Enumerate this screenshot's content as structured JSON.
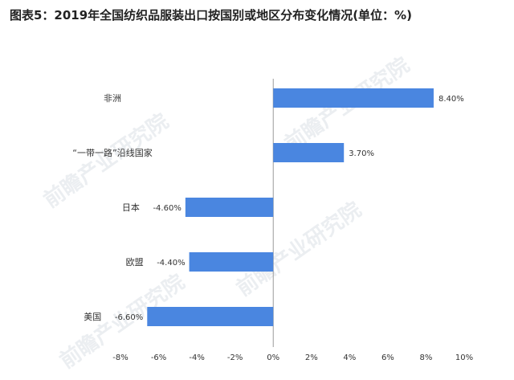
{
  "title": "图表5：2019年全国纺织品服装出口按国别或地区分布变化情况(单位：%)",
  "watermark": "前瞻产业研究院",
  "colors": {
    "bar": "#4a86e0",
    "axis": "#9a9a9a",
    "text": "#333333"
  },
  "chart_data": {
    "type": "bar",
    "orientation": "horizontal",
    "title": "图表5：2019年全国纺织品服装出口按国别或地区分布变化情况(单位：%)",
    "categories": [
      "非洲",
      "“一带一路”沿线国家",
      "日本",
      "欧盟",
      "美国"
    ],
    "values": [
      8.4,
      3.7,
      -4.6,
      -4.4,
      -6.6
    ],
    "data_labels": [
      "8.40%",
      "3.70%",
      "-4.60%",
      "-4.40%",
      "-6.60%"
    ],
    "x_ticks": [
      "-8%",
      "-6%",
      "-4%",
      "-2%",
      "0%",
      "2%",
      "4%",
      "6%",
      "8%",
      "10%"
    ],
    "xlim": [
      -8,
      10
    ],
    "grid": false,
    "legend": "none"
  }
}
